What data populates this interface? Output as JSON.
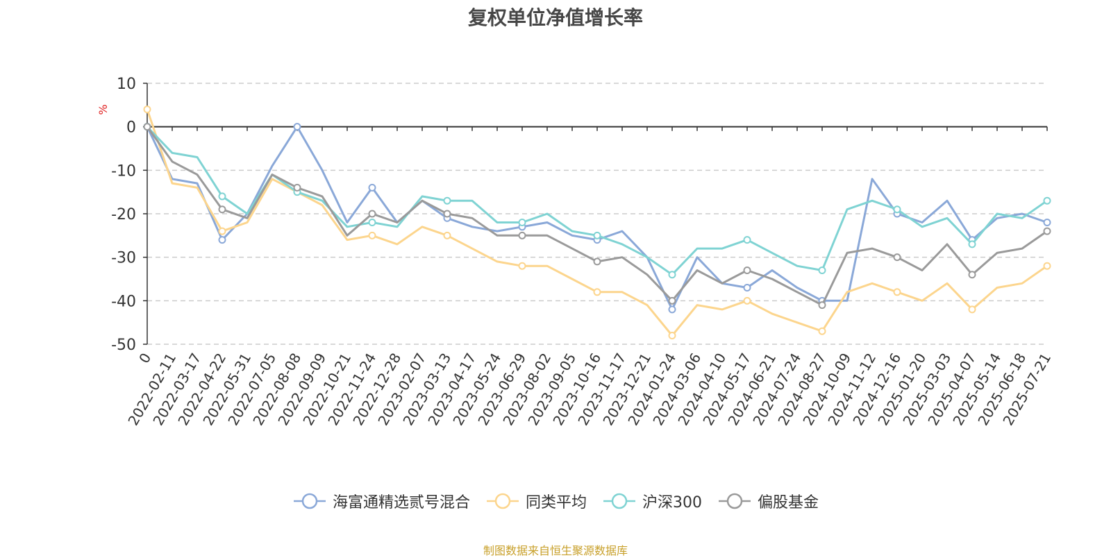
{
  "title": "复权单位净值增长率",
  "source_note": "制图数据来自恒生聚源数据库",
  "chart_data": {
    "type": "line",
    "title": "复权单位净值增长率",
    "ylabel": "%",
    "ylim": [
      -50,
      10
    ],
    "y_ticks": [
      10,
      0,
      -10,
      -20,
      -30,
      -40,
      -50
    ],
    "grid": true,
    "legend_position": "bottom",
    "x_tick_labels": [
      "0",
      "2022-02-11",
      "2022-03-17",
      "2022-04-22",
      "2022-05-31",
      "2022-07-05",
      "2022-08-08",
      "2022-09-09",
      "2022-10-21",
      "2022-11-24",
      "2022-12-28",
      "2023-02-07",
      "2023-03-13",
      "2023-04-17",
      "2023-05-24",
      "2023-06-29",
      "2023-08-02",
      "2023-09-05",
      "2023-10-16",
      "2023-11-17",
      "2023-12-21",
      "2024-01-24",
      "2024-03-06",
      "2024-04-10",
      "2024-05-17",
      "2024-06-21",
      "2024-07-24",
      "2024-08-27",
      "2024-10-09",
      "2024-11-12",
      "2024-12-16",
      "2025-01-20",
      "2025-03-03",
      "2025-04-07",
      "2025-05-14",
      "2025-06-18",
      "2025-07-21"
    ],
    "x": [
      "0",
      "2022-02-11",
      "2022-03-17",
      "2022-04-22",
      "2022-05-31",
      "2022-07-05",
      "2022-08-08",
      "2022-09-09",
      "2022-10-21",
      "2022-11-24",
      "2022-12-28",
      "2023-02-07",
      "2023-03-13",
      "2023-04-17",
      "2023-05-24",
      "2023-06-29",
      "2023-08-02",
      "2023-09-05",
      "2023-10-16",
      "2023-11-17",
      "2023-12-21",
      "2024-01-24",
      "2024-03-06",
      "2024-04-10",
      "2024-05-17",
      "2024-06-21",
      "2024-07-24",
      "2024-08-27",
      "2024-10-09",
      "2024-11-12",
      "2024-12-16",
      "2025-01-20",
      "2025-03-03",
      "2025-04-07",
      "2025-05-14",
      "2025-06-18",
      "2025-07-21"
    ],
    "series": [
      {
        "name": "海富通精选贰号混合",
        "color": "#8aa8d8",
        "values": [
          0,
          -12,
          -13,
          -26,
          -20,
          -9,
          0,
          -10,
          -22,
          -14,
          -22,
          -17,
          -21,
          -23,
          -24,
          -23,
          -22,
          -25,
          -26,
          -24,
          -30,
          -42,
          -30,
          -36,
          -37,
          -33,
          -37,
          -40,
          -40,
          -12,
          -20,
          -22,
          -17,
          -26,
          -21,
          -20,
          -22
        ]
      },
      {
        "name": "同类平均",
        "color": "#fcd58d",
        "values": [
          4,
          -13,
          -14,
          -24,
          -22,
          -12,
          -15,
          -18,
          -26,
          -25,
          -27,
          -23,
          -25,
          -28,
          -31,
          -32,
          -32,
          -35,
          -38,
          -38,
          -41,
          -48,
          -41,
          -42,
          -40,
          -43,
          -45,
          -47,
          -38,
          -36,
          -38,
          -40,
          -36,
          -42,
          -37,
          -36,
          -32
        ]
      },
      {
        "name": "沪深300",
        "color": "#7fd3d3",
        "values": [
          0,
          -6,
          -7,
          -16,
          -20,
          -11,
          -15,
          -17,
          -23,
          -22,
          -23,
          -16,
          -17,
          -17,
          -22,
          -22,
          -20,
          -24,
          -25,
          -27,
          -30,
          -34,
          -28,
          -28,
          -26,
          -29,
          -32,
          -33,
          -19,
          -17,
          -19,
          -23,
          -21,
          -27,
          -20,
          -21,
          -17
        ]
      },
      {
        "name": "偏股基金",
        "color": "#9a9a9a",
        "values": [
          0,
          -8,
          -11,
          -19,
          -21,
          -11,
          -14,
          -16,
          -25,
          -20,
          -22,
          -17,
          -20,
          -21,
          -25,
          -25,
          -25,
          -28,
          -31,
          -30,
          -34,
          -40,
          -33,
          -36,
          -33,
          -35,
          -38,
          -41,
          -29,
          -28,
          -30,
          -33,
          -27,
          -34,
          -29,
          -28,
          -24
        ]
      }
    ]
  }
}
